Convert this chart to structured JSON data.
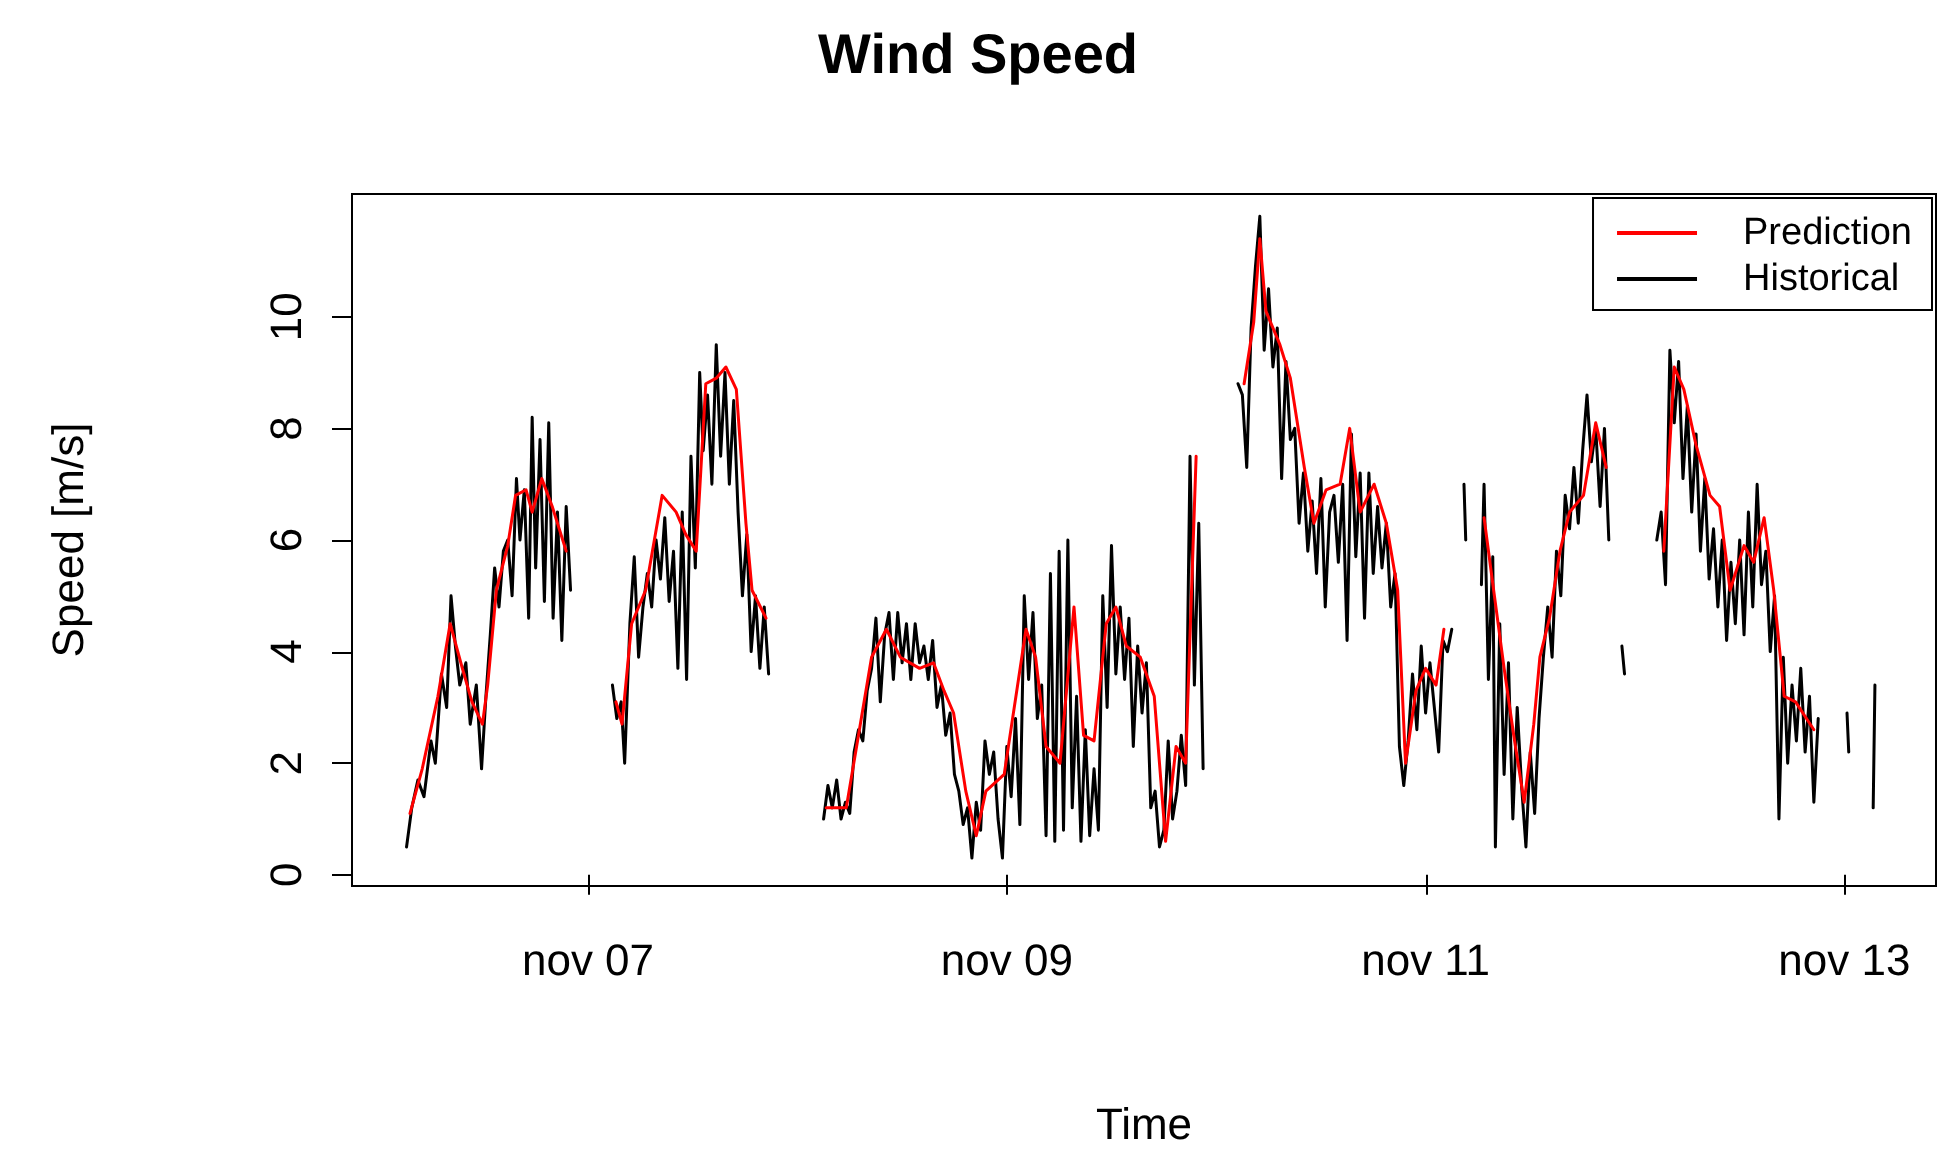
{
  "chart_data": {
    "type": "line",
    "title": "Wind Speed",
    "xlabel": "Time",
    "ylabel": "Speed [m/s]",
    "xlim": [
      "--11-05T20:57",
      "--11-13T10:30"
    ],
    "xticks": [
      {
        "value": "--11-07",
        "label": "nov 07"
      },
      {
        "value": "--11-09",
        "label": "nov 09"
      },
      {
        "value": "--11-11",
        "label": "nov 11"
      },
      {
        "value": "--11-13",
        "label": "nov 13"
      }
    ],
    "ylim": [
      -0.2,
      12.2
    ],
    "yticks": [
      0,
      2,
      4,
      6,
      8,
      10
    ],
    "grid": false,
    "legend": "top right",
    "marker": "none",
    "line_style": "solid",
    "series": [
      {
        "name": "Prediction",
        "color": "#ff0000",
        "x": [
          "--11-06T03:36",
          "--11-06T05:00",
          "--11-06T06:48",
          "--11-06T08:12",
          "--11-06T09:36",
          "--11-06T10:42",
          "--11-06T11:54",
          "--11-06T12:30",
          "--11-06T13:30",
          "--11-06T14:48",
          "--11-06T15:42",
          "--11-06T16:54",
          "--11-06T17:36",
          "--11-06T18:42",
          "--11-06T19:54",
          "--11-06T21:30",
          "--11-07T00:00",
          "--11-07T03:12",
          "--11-07T03:54",
          "--11-07T05:00",
          "--11-07T06:36",
          "--11-07T08:30",
          "--11-07T10:06",
          "--11-07T11:12",
          "--11-07T12:24",
          "--11-07T13:30",
          "--11-07T14:42",
          "--11-07T15:48",
          "--11-07T17:00",
          "--11-07T18:06",
          "--11-07T18:48",
          "--11-07T20:24",
          "--11-08T00:00",
          "--11-08T03:18",
          "--11-08T05:36",
          "--11-08T07:00",
          "--11-08T08:30",
          "--11-08T10:12",
          "--11-08T11:48",
          "--11-08T14:00",
          "--11-08T15:36",
          "--11-08T16:48",
          "--11-08T17:54",
          "--11-08T19:18",
          "--11-08T20:30",
          "--11-08T21:36",
          "--11-08T23:42",
          "--11-09T02:12",
          "--11-09T03:18",
          "--11-09T04:30",
          "--11-09T06:06",
          "--11-09T07:42",
          "--11-09T08:48",
          "--11-09T10:00",
          "--11-09T11:24",
          "--11-09T12:30",
          "--11-09T13:42",
          "--11-09T15:18",
          "--11-09T16:54",
          "--11-09T18:12",
          "--11-09T19:24",
          "--11-09T20:30",
          "--11-09T21:42",
          "--11-10T00:00",
          "--11-10T03:12",
          "--11-10T04:18",
          "--11-10T05:00",
          "--11-10T05:42",
          "--11-10T07:18",
          "--11-10T08:30",
          "--11-10T10:06",
          "--11-10T11:12",
          "--11-10T12:36",
          "--11-10T14:12",
          "--11-10T15:18",
          "--11-10T16:30",
          "--11-10T18:06",
          "--11-10T19:30",
          "--11-10T20:48",
          "--11-10T21:42",
          "--11-10T22:54",
          "--11-11T00:00",
          "--11-11T01:12",
          "--11-11T02:06",
          "--11-11T04:00",
          "--11-11T06:42",
          "--11-11T07:48",
          "--11-11T09:00",
          "--11-11T10:06",
          "--11-11T11:18",
          "--11-11T12:24",
          "--11-11T13:06",
          "--11-11T14:12",
          "--11-11T15:24",
          "--11-11T16:30",
          "--11-11T18:06",
          "--11-11T19:30",
          "--11-11T20:42",
          "--11-12T00:00",
          "--11-12T03:18",
          "--11-12T04:30",
          "--11-12T05:36",
          "--11-12T07:00",
          "--11-12T08:36",
          "--11-12T09:42",
          "--11-12T10:54",
          "--11-12T12:30",
          "--11-12T13:36",
          "--11-12T14:48",
          "--11-12T15:54",
          "--11-12T17:06",
          "--11-12T18:24",
          "--11-12T20:30"
        ],
        "values": [
          1.1,
          1.9,
          3.2,
          4.5,
          3.7,
          3.1,
          2.7,
          3.4,
          5.1,
          5.9,
          6.8,
          6.9,
          6.5,
          7.1,
          6.6,
          5.8,
          null,
          3.1,
          2.7,
          4.5,
          5.1,
          6.8,
          6.5,
          6.1,
          5.8,
          8.8,
          8.9,
          9.1,
          8.7,
          6.3,
          5.1,
          4.6,
          null,
          1.2,
          1.2,
          2.5,
          3.9,
          4.4,
          3.9,
          3.7,
          3.8,
          3.3,
          2.9,
          1.5,
          0.7,
          1.5,
          1.8,
          4.4,
          3.9,
          2.3,
          2.0,
          4.8,
          2.5,
          2.4,
          4.5,
          4.8,
          4.1,
          3.9,
          3.2,
          0.6,
          2.3,
          2.0,
          7.5,
          null,
          8.8,
          9.9,
          11.4,
          10.1,
          9.5,
          8.9,
          7.3,
          6.3,
          6.9,
          7.0,
          8.0,
          6.5,
          7.0,
          6.3,
          5.1,
          2.0,
          3.3,
          3.7,
          3.4,
          4.4,
          null,
          6.4,
          5.1,
          3.7,
          2.5,
          1.3,
          2.7,
          3.9,
          4.6,
          5.8,
          6.5,
          6.8,
          8.1,
          7.3,
          null,
          5.8,
          9.1,
          8.7,
          7.7,
          6.8,
          6.6,
          5.1,
          5.9,
          5.6,
          6.4,
          5.1,
          3.2,
          3.1,
          2.6
        ]
      },
      {
        "name": "Historical",
        "color": "#000000",
        "x": [
          "--11-06T03:12",
          "--11-06T03:48",
          "--11-06T04:30",
          "--11-06T05:12",
          "--11-06T06:00",
          "--11-06T06:30",
          "--11-06T07:12",
          "--11-06T07:48",
          "--11-06T08:18",
          "--11-06T08:48",
          "--11-06T09:18",
          "--11-06T10:00",
          "--11-06T10:30",
          "--11-06T11:12",
          "--11-06T11:48",
          "--11-06T12:18",
          "--11-06T12:48",
          "--11-06T13:18",
          "--11-06T13:48",
          "--11-06T14:18",
          "--11-06T14:48",
          "--11-06T15:18",
          "--11-06T15:48",
          "--11-06T16:12",
          "--11-06T16:42",
          "--11-06T17:12",
          "--11-06T17:36",
          "--11-06T18:00",
          "--11-06T18:30",
          "--11-06T19:00",
          "--11-06T19:30",
          "--11-06T20:00",
          "--11-06T20:30",
          "--11-06T21:00",
          "--11-06T21:30",
          "--11-06T22:00",
          "--11-07T00:00",
          "--11-07T02:48",
          "--11-07T03:18",
          "--11-07T03:48",
          "--11-07T04:12",
          "--11-07T04:48",
          "--11-07T05:18",
          "--11-07T05:48",
          "--11-07T06:18",
          "--11-07T06:48",
          "--11-07T07:18",
          "--11-07T07:48",
          "--11-07T08:18",
          "--11-07T08:48",
          "--11-07T09:18",
          "--11-07T09:48",
          "--11-07T10:18",
          "--11-07T10:48",
          "--11-07T11:18",
          "--11-07T11:48",
          "--11-07T12:18",
          "--11-07T12:48",
          "--11-07T13:12",
          "--11-07T13:42",
          "--11-07T14:12",
          "--11-07T14:42",
          "--11-07T15:12",
          "--11-07T15:42",
          "--11-07T16:12",
          "--11-07T16:42",
          "--11-07T17:12",
          "--11-07T17:42",
          "--11-07T18:12",
          "--11-07T18:42",
          "--11-07T19:12",
          "--11-07T19:42",
          "--11-07T20:12",
          "--11-07T20:42",
          "--11-08T00:00",
          "--11-08T03:00",
          "--11-08T03:30",
          "--11-08T04:00",
          "--11-08T04:30",
          "--11-08T05:00",
          "--11-08T05:30",
          "--11-08T06:00",
          "--11-08T06:30",
          "--11-08T07:00",
          "--11-08T07:30",
          "--11-08T08:00",
          "--11-08T08:30",
          "--11-08T09:00",
          "--11-08T09:30",
          "--11-08T10:00",
          "--11-08T10:30",
          "--11-08T11:00",
          "--11-08T11:30",
          "--11-08T12:00",
          "--11-08T12:30",
          "--11-08T13:00",
          "--11-08T13:30",
          "--11-08T14:00",
          "--11-08T14:30",
          "--11-08T15:00",
          "--11-08T15:30",
          "--11-08T16:00",
          "--11-08T16:30",
          "--11-08T17:00",
          "--11-08T17:30",
          "--11-08T18:00",
          "--11-08T18:30",
          "--11-08T19:00",
          "--11-08T19:30",
          "--11-08T20:00",
          "--11-08T20:30",
          "--11-08T21:00",
          "--11-08T21:30",
          "--11-08T22:00",
          "--11-08T22:30",
          "--11-08T23:00",
          "--11-08T23:30",
          "--11-09T00:00",
          "--11-09T00:30",
          "--11-09T01:00",
          "--11-09T01:30",
          "--11-09T02:00",
          "--11-09T02:30",
          "--11-09T03:00",
          "--11-09T03:30",
          "--11-09T04:00",
          "--11-09T04:30",
          "--11-09T05:00",
          "--11-09T05:30",
          "--11-09T06:00",
          "--11-09T06:30",
          "--11-09T07:00",
          "--11-09T07:30",
          "--11-09T08:00",
          "--11-09T08:30",
          "--11-09T09:00",
          "--11-09T09:30",
          "--11-09T10:00",
          "--11-09T10:30",
          "--11-09T11:00",
          "--11-09T11:30",
          "--11-09T12:00",
          "--11-09T12:30",
          "--11-09T13:00",
          "--11-09T13:30",
          "--11-09T14:00",
          "--11-09T14:30",
          "--11-09T15:00",
          "--11-09T15:30",
          "--11-09T16:00",
          "--11-09T16:30",
          "--11-09T17:00",
          "--11-09T17:30",
          "--11-09T18:00",
          "--11-09T18:30",
          "--11-09T19:00",
          "--11-09T19:30",
          "--11-09T20:00",
          "--11-09T20:30",
          "--11-09T21:00",
          "--11-09T21:30",
          "--11-09T22:00",
          "--11-09T22:30",
          "--11-10T00:00",
          "--11-10T02:30",
          "--11-10T03:00",
          "--11-10T03:30",
          "--11-10T04:00",
          "--11-10T04:30",
          "--11-10T05:00",
          "--11-10T05:30",
          "--11-10T06:00",
          "--11-10T06:30",
          "--11-10T07:00",
          "--11-10T07:30",
          "--11-10T08:00",
          "--11-10T08:30",
          "--11-10T09:00",
          "--11-10T09:30",
          "--11-10T10:00",
          "--11-10T10:30",
          "--11-10T11:00",
          "--11-10T11:30",
          "--11-10T12:00",
          "--11-10T12:30",
          "--11-10T13:00",
          "--11-10T13:30",
          "--11-10T14:00",
          "--11-10T14:30",
          "--11-10T15:00",
          "--11-10T15:30",
          "--11-10T16:00",
          "--11-10T16:30",
          "--11-10T17:00",
          "--11-10T17:30",
          "--11-10T18:00",
          "--11-10T18:30",
          "--11-10T19:00",
          "--11-10T19:30",
          "--11-10T20:00",
          "--11-10T20:30",
          "--11-10T21:00",
          "--11-10T21:30",
          "--11-10T22:00",
          "--11-10T22:30",
          "--11-10T23:00",
          "--11-10T23:30",
          "--11-11T00:00",
          "--11-11T00:30",
          "--11-11T01:00",
          "--11-11T01:30",
          "--11-11T02:00",
          "--11-11T02:30",
          "--11-11T03:00",
          "--11-11T03:48",
          "--11-11T04:24",
          "--11-11T04:36",
          "--11-11T05:30",
          "--11-11T06:24",
          "--11-11T06:42",
          "--11-11T07:12",
          "--11-11T07:42",
          "--11-11T08:00",
          "--11-11T08:30",
          "--11-11T09:00",
          "--11-11T09:30",
          "--11-11T10:00",
          "--11-11T10:30",
          "--11-11T11:00",
          "--11-11T11:30",
          "--11-11T12:00",
          "--11-11T12:30",
          "--11-11T13:00",
          "--11-11T13:30",
          "--11-11T14:00",
          "--11-11T14:30",
          "--11-11T15:00",
          "--11-11T15:30",
          "--11-11T16:00",
          "--11-11T16:30",
          "--11-11T17:00",
          "--11-11T17:30",
          "--11-11T18:00",
          "--11-11T18:30",
          "--11-11T19:00",
          "--11-11T19:30",
          "--11-11T20:00",
          "--11-11T20:30",
          "--11-11T21:00",
          "--11-11T22:00",
          "--11-11T22:30",
          "--11-11T22:48",
          "--11-11T23:30",
          "--11-12T02:30",
          "--11-12T03:00",
          "--11-12T03:30",
          "--11-12T04:00",
          "--11-12T04:30",
          "--11-12T05:00",
          "--11-12T05:30",
          "--11-12T06:00",
          "--11-12T06:30",
          "--11-12T07:00",
          "--11-12T07:30",
          "--11-12T08:00",
          "--11-12T08:30",
          "--11-12T09:00",
          "--11-12T09:30",
          "--11-12T10:00",
          "--11-12T10:30",
          "--11-12T11:00",
          "--11-12T11:30",
          "--11-12T12:00",
          "--11-12T12:30",
          "--11-12T13:00",
          "--11-12T13:30",
          "--11-12T14:00",
          "--11-12T14:30",
          "--11-12T15:00",
          "--11-12T15:30",
          "--11-12T16:00",
          "--11-12T16:30",
          "--11-12T17:00",
          "--11-12T17:30",
          "--11-12T18:00",
          "--11-12T18:30",
          "--11-12T19:00",
          "--11-12T19:30",
          "--11-12T20:00",
          "--11-12T20:30",
          "--11-12T21:00",
          "--11-12T22:00",
          "--11-13T00:18",
          "--11-13T00:30",
          "--11-13T01:30",
          "--11-13T03:18",
          "--11-13T03:30"
        ],
        "values": [
          0.5,
          1.2,
          1.7,
          1.4,
          2.4,
          2.0,
          3.6,
          3.0,
          5.0,
          4.1,
          3.4,
          3.8,
          2.7,
          3.4,
          1.9,
          3.2,
          4.3,
          5.5,
          4.8,
          5.8,
          6.0,
          5.0,
          7.1,
          6.0,
          6.9,
          4.6,
          8.2,
          5.5,
          7.8,
          4.9,
          8.1,
          4.6,
          6.5,
          4.2,
          6.6,
          5.1,
          null,
          3.4,
          2.8,
          3.1,
          2.0,
          4.5,
          5.7,
          3.9,
          4.8,
          5.4,
          4.8,
          6.0,
          5.3,
          6.4,
          4.9,
          5.8,
          3.7,
          6.5,
          3.5,
          7.5,
          5.5,
          9.0,
          7.6,
          8.6,
          7.0,
          9.5,
          7.5,
          9.0,
          7.0,
          8.5,
          6.5,
          5.0,
          6.1,
          4.0,
          5.0,
          3.7,
          4.8,
          3.6,
          null,
          1.0,
          1.6,
          1.2,
          1.7,
          1.0,
          1.3,
          1.1,
          2.2,
          2.6,
          2.4,
          3.3,
          3.7,
          4.6,
          3.1,
          4.3,
          4.7,
          3.5,
          4.7,
          3.8,
          4.5,
          3.5,
          4.5,
          3.8,
          4.1,
          3.5,
          4.2,
          3.0,
          3.4,
          2.5,
          2.9,
          1.8,
          1.5,
          0.9,
          1.2,
          0.3,
          1.3,
          0.8,
          2.4,
          1.8,
          2.2,
          1.0,
          0.3,
          2.3,
          1.4,
          2.8,
          0.9,
          5.0,
          3.5,
          4.7,
          2.8,
          3.4,
          0.7,
          5.4,
          0.6,
          5.8,
          0.8,
          6.0,
          1.2,
          3.2,
          0.6,
          2.6,
          0.7,
          1.9,
          0.8,
          5.0,
          3.0,
          5.9,
          3.6,
          4.8,
          3.5,
          4.6,
          2.3,
          4.1,
          2.9,
          3.8,
          1.2,
          1.5,
          0.5,
          0.8,
          2.4,
          1.0,
          1.5,
          2.5,
          1.6,
          7.5,
          3.4,
          6.3,
          1.9,
          null,
          8.8,
          8.6,
          7.3,
          9.8,
          10.9,
          11.8,
          9.4,
          10.5,
          9.1,
          9.8,
          7.1,
          9.2,
          7.8,
          8.0,
          6.3,
          7.2,
          5.8,
          6.7,
          5.4,
          7.1,
          4.8,
          6.5,
          6.8,
          5.6,
          7.0,
          4.2,
          7.9,
          5.7,
          7.2,
          4.6,
          7.2,
          5.4,
          6.6,
          5.5,
          6.3,
          4.8,
          5.4,
          2.3,
          1.6,
          2.4,
          3.6,
          2.6,
          4.1,
          2.9,
          3.8,
          3.0,
          2.2,
          4.2,
          4.0,
          4.4,
          null,
          7.0,
          6.0,
          null,
          5.2,
          7.0,
          3.5,
          5.7,
          0.5,
          4.5,
          1.8,
          3.8,
          1.0,
          3.0,
          1.6,
          0.5,
          2.2,
          1.1,
          2.8,
          3.9,
          4.8,
          3.9,
          5.8,
          5.0,
          6.8,
          6.2,
          7.3,
          6.3,
          7.6,
          8.6,
          7.4,
          8.0,
          6.6,
          8.0,
          6.0,
          null,
          4.1,
          3.6,
          null,
          6.0,
          6.5,
          5.2,
          9.4,
          8.1,
          9.2,
          7.1,
          8.4,
          6.5,
          7.9,
          5.8,
          7.1,
          5.3,
          6.2,
          4.8,
          6.0,
          4.2,
          5.6,
          4.5,
          6.0,
          4.3,
          6.5,
          4.8,
          7.0,
          5.2,
          5.8,
          4.0,
          5.0,
          1.0,
          3.9,
          2.0,
          3.4,
          2.4,
          3.7,
          2.2,
          3.2,
          1.3,
          2.8,
          null,
          2.9,
          2.2,
          null,
          1.2,
          3.4
        ]
      }
    ]
  }
}
